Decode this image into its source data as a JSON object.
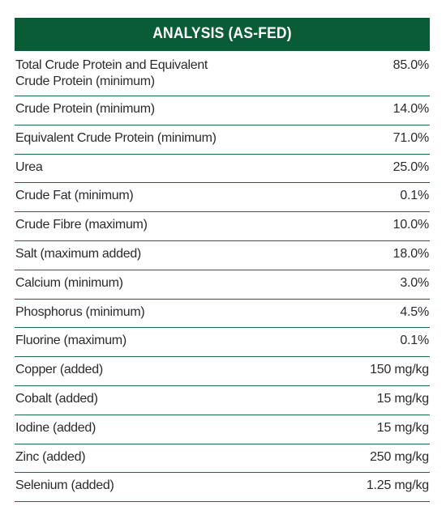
{
  "title": "ANALYSIS (AS-FED)",
  "colors": {
    "header_bg": "#0a5c36",
    "rule": "#1f6b47",
    "text": "#2b2b2b"
  },
  "rows": [
    {
      "label": "Total Crude Protein and Equivalent\nCrude Protein (minimum)",
      "value": "85.0%"
    },
    {
      "label": "Crude Protein (minimum)",
      "value": "14.0%"
    },
    {
      "label": "Equivalent Crude Protein (minimum)",
      "value": "71.0%"
    },
    {
      "label": "Urea",
      "value": "25.0%"
    },
    {
      "label": "Crude Fat (minimum)",
      "value": "0.1%"
    },
    {
      "label": "Crude Fibre (maximum)",
      "value": "10.0%"
    },
    {
      "label": "Salt (maximum added)",
      "value": "18.0%"
    },
    {
      "label": "Calcium (minimum)",
      "value": "3.0%"
    },
    {
      "label": "Phosphorus (minimum)",
      "value": "4.5%"
    },
    {
      "label": "Fluorine (maximum)",
      "value": "0.1%"
    },
    {
      "label": "Copper (added)",
      "value": "150 mg/kg"
    },
    {
      "label": "Cobalt (added)",
      "value": "15 mg/kg"
    },
    {
      "label": "Iodine (added)",
      "value": "15 mg/kg"
    },
    {
      "label": "Zinc (added)",
      "value": "250 mg/kg"
    },
    {
      "label": "Selenium (added)",
      "value": "1.25 mg/kg"
    }
  ]
}
